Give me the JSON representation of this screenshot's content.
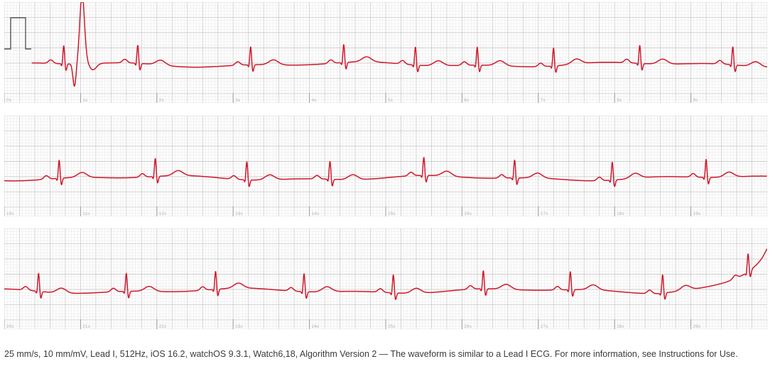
{
  "chart_data": {
    "type": "line",
    "colors": {
      "trace": "#d0192d",
      "grid_minor": "#e6e6e6",
      "grid_major": "#c8c8c8",
      "calibration": "#555555",
      "tick_label": "#b5b5b5"
    },
    "strips": [
      {
        "x_ticks": [
          "0s",
          "1s",
          "2s",
          "3s",
          "4s",
          "5s",
          "6s",
          "7s",
          "8s",
          "9s"
        ],
        "x_start": 0,
        "calibration_pulse": true,
        "beats": [
          0.78,
          1.75,
          3.23,
          4.45,
          5.39,
          6.2,
          7.2,
          8.33,
          9.55
        ],
        "spike_beat": 1.0
      },
      {
        "x_ticks": [
          "10s",
          "11s",
          "12s",
          "13s",
          "14s",
          "15s",
          "16s",
          "17s",
          "18s",
          "19s"
        ],
        "x_start": 10,
        "calibration_pulse": false,
        "beats": [
          10.72,
          11.98,
          13.18,
          14.27,
          15.5,
          16.69,
          17.97,
          19.2
        ]
      },
      {
        "x_ticks": [
          "20s",
          "21s",
          "22s",
          "23s",
          "24s",
          "25s",
          "26s",
          "27s",
          "28s",
          "29s"
        ],
        "x_start": 20,
        "calibration_pulse": false,
        "beats": [
          20.45,
          21.6,
          22.77,
          23.93,
          25.1,
          26.28,
          27.42,
          28.63,
          29.75
        ]
      }
    ]
  },
  "footer": {
    "text": "25 mm/s, 10 mm/mV, Lead I, 512Hz, iOS 16.2, watchOS 9.3.1, Watch6,18, Algorithm Version 2 — The waveform is similar to a Lead I ECG. For more information, see Instructions for Use."
  }
}
